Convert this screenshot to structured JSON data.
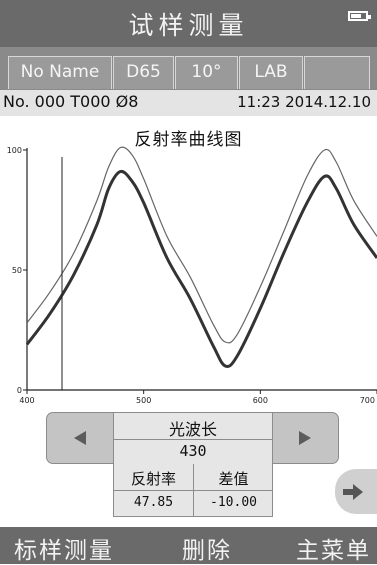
{
  "header": {
    "title": "试样测量",
    "battery_level": 0.7
  },
  "tabs": [
    {
      "label": "No Name"
    },
    {
      "label": "D65"
    },
    {
      "label": "10°"
    },
    {
      "label": "LAB"
    },
    {
      "label": ""
    }
  ],
  "info": {
    "sample": "No. 000 T000 Ø8",
    "datetime": "11:23  2014.12.10"
  },
  "chart_data": {
    "type": "line",
    "title": "反射率曲线图",
    "xlim": [
      400,
      700
    ],
    "ylim": [
      0,
      100
    ],
    "x_ticks": [
      400,
      500,
      600,
      700
    ],
    "y_ticks": [
      0,
      50,
      100
    ],
    "x": [
      400,
      420,
      440,
      460,
      470,
      480,
      490,
      500,
      520,
      540,
      560,
      570,
      580,
      600,
      620,
      640,
      655,
      665,
      680,
      700
    ],
    "series": [
      {
        "values": [
          28,
          41,
          57,
          79,
          93,
          101,
          98,
          88,
          64,
          47,
          27,
          20,
          23,
          43,
          66,
          89,
          100,
          95,
          79,
          64
        ]
      },
      {
        "values": [
          19,
          32,
          48,
          69,
          84,
          91,
          87,
          78,
          55,
          38,
          18,
          10,
          14,
          34,
          57,
          78,
          89,
          84,
          69,
          55
        ]
      }
    ],
    "cursor_x": 430,
    "grid": false,
    "colors": {
      "thin": "#666666",
      "thick": "#333333"
    }
  },
  "controls": {
    "prev_icon": "triangle-left",
    "next_icon": "triangle-right",
    "wavelength_label": "光波长",
    "wavelength_value": "430",
    "reflectance_label": "反射率",
    "reflectance_value": "47.85",
    "diff_label": "差值",
    "diff_value": "-10.00",
    "page_next_icon": "arrow-right"
  },
  "footer": {
    "std_measure": "标样测量",
    "delete": "删除",
    "main_menu": "主菜单"
  }
}
